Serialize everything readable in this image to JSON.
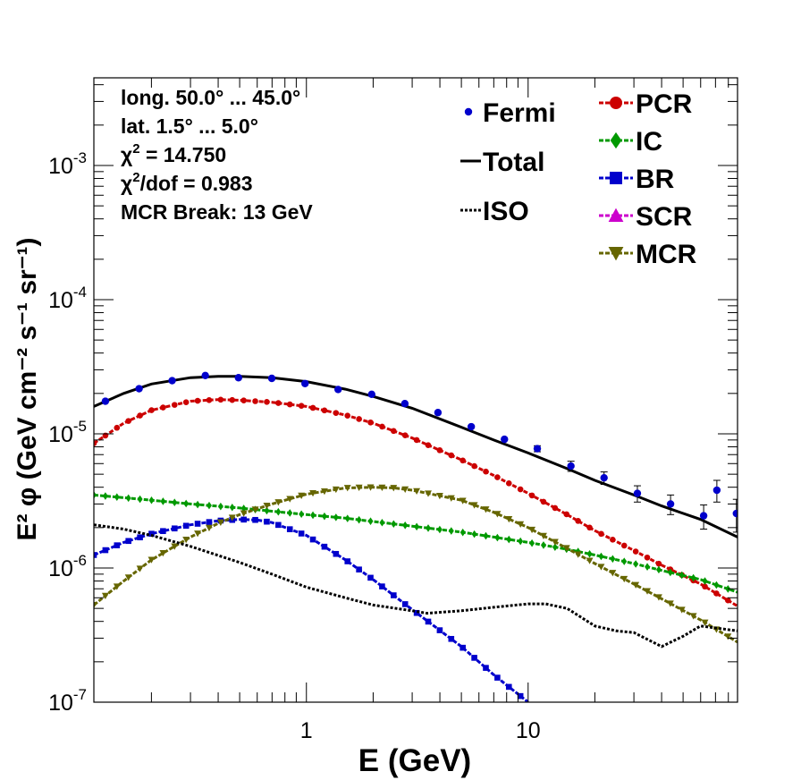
{
  "chart_data": {
    "type": "line",
    "xlabel": "E (GeV)",
    "ylabel": "E² φ (GeV cm⁻² s⁻¹ sr⁻¹)",
    "xscale": "log",
    "yscale": "log",
    "xlim": [
      0.11,
      88
    ],
    "ylim": [
      1e-07,
      0.0045
    ],
    "grid": false,
    "legend_position": "top-right",
    "x_tick_labels": [
      {
        "value": 1,
        "label": "1"
      },
      {
        "value": 10,
        "label": "10"
      }
    ],
    "y_tick_labels": [
      {
        "value": 1e-07,
        "base": "10",
        "exp": "-7"
      },
      {
        "value": 1e-06,
        "base": "10",
        "exp": "-6"
      },
      {
        "value": 1e-05,
        "base": "10",
        "exp": "-5"
      },
      {
        "value": 0.0001,
        "base": "10",
        "exp": "-4"
      },
      {
        "value": 0.001,
        "base": "10",
        "exp": "-3"
      }
    ],
    "info_lines": [
      {
        "pre": "long. 50.0° ... 45.0°",
        "sup": "",
        "post": ""
      },
      {
        "pre": "lat. 1.5° ... 5.0°",
        "sup": "",
        "post": ""
      },
      {
        "pre": "χ",
        "sup": "2",
        "post": " = 14.750"
      },
      {
        "pre": "χ",
        "sup": "2",
        "post": "/dof = 0.983"
      },
      {
        "pre": "MCR Break: 13 GeV",
        "sup": "",
        "post": ""
      }
    ],
    "legend_left": [
      "Fermi",
      "Total",
      "ISO"
    ],
    "legend_right": [
      "PCR",
      "IC",
      "BR",
      "SCR",
      "MCR"
    ],
    "fermi": {
      "name": "Fermi",
      "color": "#0000cc",
      "points": [
        {
          "x": 0.124,
          "y": 1.75e-05,
          "err": 6e-07
        },
        {
          "x": 0.176,
          "y": 2.17e-05,
          "err": 6e-07
        },
        {
          "x": 0.248,
          "y": 2.49e-05,
          "err": 6e-07
        },
        {
          "x": 0.35,
          "y": 2.72e-05,
          "err": 6e-07
        },
        {
          "x": 0.494,
          "y": 2.62e-05,
          "err": 6e-07
        },
        {
          "x": 0.698,
          "y": 2.59e-05,
          "err": 6e-07
        },
        {
          "x": 0.986,
          "y": 2.37e-05,
          "err": 6e-07
        },
        {
          "x": 1.39,
          "y": 2.14e-05,
          "err": 6e-07
        },
        {
          "x": 1.97,
          "y": 1.97e-05,
          "err": 6e-07
        },
        {
          "x": 2.78,
          "y": 1.68e-05,
          "err": 6e-07
        },
        {
          "x": 3.92,
          "y": 1.44e-05,
          "err": 6e-07
        },
        {
          "x": 5.54,
          "y": 1.13e-05,
          "err": 5e-07
        },
        {
          "x": 7.82,
          "y": 9.1e-06,
          "err": 4e-07
        },
        {
          "x": 11.0,
          "y": 7.75e-06,
          "err": 4e-07
        },
        {
          "x": 15.6,
          "y": 5.75e-06,
          "err": 5e-07
        },
        {
          "x": 22.0,
          "y": 4.7e-06,
          "err": 5e-07
        },
        {
          "x": 31.1,
          "y": 3.6e-06,
          "err": 5e-07
        },
        {
          "x": 43.9,
          "y": 3e-06,
          "err": 5e-07
        },
        {
          "x": 61.9,
          "y": 2.45e-06,
          "err": 5e-07
        },
        {
          "x": 71.0,
          "y": 3.8e-06,
          "err": 7e-07
        },
        {
          "x": 87.0,
          "y": 2.55e-06,
          "err": 7e-07
        }
      ]
    },
    "series": [
      {
        "name": "Total",
        "color": "#000000",
        "style": "solid",
        "marker": "none",
        "x": [
          0.11,
          0.15,
          0.2,
          0.3,
          0.4,
          0.5,
          0.7,
          1.0,
          1.5,
          2.0,
          3.0,
          5.0,
          7.0,
          10,
          15,
          20,
          30,
          40,
          60,
          88
        ],
        "y": [
          1.6e-05,
          2e-05,
          2.35e-05,
          2.62e-05,
          2.68e-05,
          2.68e-05,
          2.62e-05,
          2.45e-05,
          2.15e-05,
          1.9e-05,
          1.55e-05,
          1.12e-05,
          9e-06,
          7.2e-06,
          5.5e-06,
          4.5e-06,
          3.5e-06,
          2.9e-06,
          2.3e-06,
          1.7e-06
        ]
      },
      {
        "name": "PCR",
        "color": "#cc0000",
        "style": "dashed",
        "marker": "circle",
        "x": [
          0.11,
          0.15,
          0.2,
          0.3,
          0.4,
          0.5,
          0.7,
          1.0,
          1.5,
          2.0,
          3.0,
          5.0,
          7.0,
          10,
          15,
          20,
          30,
          40,
          60,
          88
        ],
        "y": [
          8.5e-06,
          1.2e-05,
          1.5e-05,
          1.75e-05,
          1.8e-05,
          1.78e-05,
          1.72e-05,
          1.6e-05,
          1.38e-05,
          1.2e-05,
          9.3e-06,
          6.4e-06,
          4.9e-06,
          3.6e-06,
          2.5e-06,
          1.9e-06,
          1.35e-06,
          1.05e-06,
          7.6e-07,
          5.2e-07
        ]
      },
      {
        "name": "IC",
        "color": "#009900",
        "style": "dashed",
        "marker": "diamond",
        "x": [
          0.11,
          0.2,
          0.3,
          0.5,
          0.7,
          1.0,
          1.5,
          2.0,
          3.0,
          5.0,
          7.0,
          10,
          15,
          20,
          30,
          40,
          60,
          88
        ],
        "y": [
          3.5e-06,
          3.2e-06,
          3e-06,
          2.8e-06,
          2.65e-06,
          2.5e-06,
          2.35e-06,
          2.22e-06,
          2.05e-06,
          1.85e-06,
          1.7e-06,
          1.55e-06,
          1.38e-06,
          1.25e-06,
          1.08e-06,
          9.6e-07,
          8.2e-07,
          6.6e-07
        ]
      },
      {
        "name": "BR",
        "color": "#0000cc",
        "style": "dashed",
        "marker": "square",
        "x": [
          0.11,
          0.15,
          0.2,
          0.3,
          0.4,
          0.5,
          0.6,
          0.7,
          1.0,
          1.5,
          2.0,
          3.0,
          5.0,
          7.0,
          10
        ],
        "y": [
          1.25e-06,
          1.55e-06,
          1.8e-06,
          2.1e-06,
          2.25e-06,
          2.3e-06,
          2.28e-06,
          2.18e-06,
          1.75e-06,
          1.15e-06,
          8.2e-07,
          4.9e-07,
          2.6e-07,
          1.6e-07,
          1e-07
        ]
      },
      {
        "name": "SCR",
        "color": "#cc00cc",
        "style": "dashed",
        "marker": "triangle-up",
        "x": [],
        "y": []
      },
      {
        "name": "MCR",
        "color": "#666600",
        "style": "dashed",
        "marker": "triangle-down",
        "x": [
          0.11,
          0.15,
          0.2,
          0.3,
          0.4,
          0.5,
          0.7,
          1.0,
          1.5,
          2.0,
          2.5,
          3.0,
          5.0,
          7.0,
          10,
          15,
          20,
          30,
          40,
          60,
          88
        ],
        "y": [
          5.3e-07,
          8e-07,
          1.15e-06,
          1.7e-06,
          2.15e-06,
          2.5e-06,
          3e-06,
          3.55e-06,
          3.95e-06,
          4e-06,
          3.95e-06,
          3.8e-06,
          3.2e-06,
          2.6e-06,
          2e-06,
          1.4e-06,
          1.08e-06,
          7.6e-07,
          5.9e-07,
          4.1e-07,
          2.8e-07
        ]
      },
      {
        "name": "ISO",
        "color": "#000000",
        "style": "dotted",
        "marker": "none",
        "x": [
          0.11,
          0.15,
          0.2,
          0.3,
          0.5,
          0.7,
          1.0,
          1.5,
          2.0,
          3.0,
          3.5,
          5.0,
          7.0,
          10,
          12,
          15,
          20,
          25,
          30,
          40,
          50,
          60,
          88
        ],
        "y": [
          2.1e-06,
          1.95e-06,
          1.75e-06,
          1.45e-06,
          1.1e-06,
          9e-07,
          7.2e-07,
          6e-07,
          5.3e-07,
          4.8e-07,
          4.6e-07,
          4.8e-07,
          5.1e-07,
          5.4e-07,
          5.4e-07,
          5e-07,
          3.7e-07,
          3.4e-07,
          3.3e-07,
          2.6e-07,
          3.1e-07,
          3.7e-07,
          3.4e-07
        ]
      }
    ]
  }
}
